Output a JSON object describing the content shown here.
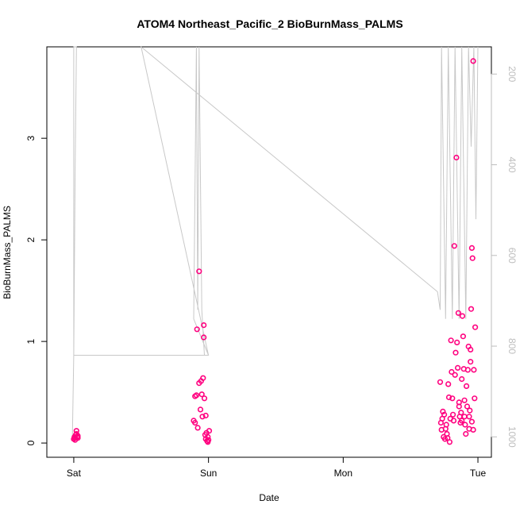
{
  "chart_data": {
    "type": "scatter",
    "title": "ATOM4 Northeast_Pacific_2 BioBurnMass_PALMS",
    "xlabel": "Date",
    "ylabel": "BioBurnMass_PALMS",
    "x_ticks": [
      "Sat",
      "Sun",
      "Mon",
      "Tue"
    ],
    "y_ticks": [
      "0",
      "1",
      "2",
      "3"
    ],
    "y_right_ticks": [
      "200",
      "400",
      "600",
      "800",
      "1000"
    ],
    "xlim_days": [
      -0.2,
      3.1
    ],
    "ylim": [
      -0.14,
      3.9
    ],
    "y_right_lim": [
      1045,
      140
    ],
    "grid": false,
    "marker_color": "#ff007f",
    "line_color": "#c8c8c8",
    "series": [
      {
        "kind": "points",
        "values": [
          [
            0.0,
            0.04
          ],
          [
            0.005,
            0.06
          ],
          [
            0.01,
            0.05
          ],
          [
            0.015,
            0.08
          ],
          [
            0.02,
            0.12
          ],
          [
            0.025,
            0.06
          ],
          [
            0.03,
            0.05
          ],
          [
            0.02,
            0.09
          ],
          [
            0.01,
            0.03
          ],
          [
            0.03,
            0.07
          ],
          [
            0.89,
            0.22
          ],
          [
            0.9,
            0.46
          ],
          [
            0.91,
            0.47
          ],
          [
            0.9,
            0.2
          ],
          [
            0.92,
            0.15
          ],
          [
            0.915,
            1.12
          ],
          [
            0.93,
            1.69
          ],
          [
            0.93,
            0.59
          ],
          [
            0.94,
            0.33
          ],
          [
            0.945,
            0.61
          ],
          [
            0.95,
            0.48
          ],
          [
            0.955,
            0.26
          ],
          [
            0.96,
            0.64
          ],
          [
            0.965,
            1.16
          ],
          [
            0.965,
            1.04
          ],
          [
            0.97,
            0.44
          ],
          [
            0.975,
            0.08
          ],
          [
            0.98,
            0.27
          ],
          [
            0.985,
            0.1
          ],
          [
            0.99,
            0.02
          ],
          [
            0.995,
            0.06
          ],
          [
            1.0,
            0.03
          ],
          [
            1.005,
            0.12
          ],
          [
            0.995,
            0.01
          ],
          [
            0.98,
            0.04
          ],
          [
            2.72,
            0.6
          ],
          [
            2.725,
            0.2
          ],
          [
            2.73,
            0.13
          ],
          [
            2.735,
            0.24
          ],
          [
            2.74,
            0.31
          ],
          [
            2.745,
            0.06
          ],
          [
            2.75,
            0.28
          ],
          [
            2.755,
            0.04
          ],
          [
            2.76,
            0.14
          ],
          [
            2.765,
            0.18
          ],
          [
            2.77,
            0.09
          ],
          [
            2.775,
            0.05
          ],
          [
            2.78,
            0.58
          ],
          [
            2.785,
            0.45
          ],
          [
            2.79,
            0.01
          ],
          [
            2.795,
            0.24
          ],
          [
            2.8,
            1.01
          ],
          [
            2.805,
            0.7
          ],
          [
            2.81,
            0.44
          ],
          [
            2.815,
            0.28
          ],
          [
            2.82,
            0.22
          ],
          [
            2.825,
            1.94
          ],
          [
            2.83,
            0.67
          ],
          [
            2.835,
            0.89
          ],
          [
            2.84,
            2.81
          ],
          [
            2.845,
            0.99
          ],
          [
            2.85,
            0.74
          ],
          [
            2.855,
            1.28
          ],
          [
            2.86,
            0.4
          ],
          [
            2.865,
            0.26
          ],
          [
            2.87,
            0.2
          ],
          [
            2.875,
            0.3
          ],
          [
            2.88,
            0.63
          ],
          [
            2.885,
            1.25
          ],
          [
            2.89,
            1.05
          ],
          [
            2.895,
            0.73
          ],
          [
            2.9,
            0.26
          ],
          [
            2.905,
            0.18
          ],
          [
            2.91,
            0.09
          ],
          [
            2.915,
            0.56
          ],
          [
            2.92,
            0.36
          ],
          [
            2.925,
            0.72
          ],
          [
            2.93,
            0.95
          ],
          [
            2.935,
            0.26
          ],
          [
            2.94,
            0.32
          ],
          [
            2.945,
            0.8
          ],
          [
            2.95,
            1.32
          ],
          [
            2.955,
            1.92
          ],
          [
            2.96,
            1.82
          ],
          [
            2.965,
            3.76
          ],
          [
            2.97,
            0.72
          ],
          [
            2.975,
            0.44
          ],
          [
            2.98,
            1.14
          ],
          [
            2.965,
            0.13
          ],
          [
            2.955,
            0.21
          ],
          [
            2.945,
            0.92
          ],
          [
            2.935,
            0.14
          ],
          [
            2.9,
            0.42
          ],
          [
            2.88,
            0.22
          ],
          [
            2.86,
            0.36
          ]
        ]
      },
      {
        "kind": "line",
        "axis": "right",
        "values": [
          [
            -0.01,
            1000
          ],
          [
            0.0,
            820
          ],
          [
            0.01,
            420
          ],
          [
            0.02,
            140
          ],
          [
            0.0,
            140
          ],
          [
            0.0,
            820
          ],
          [
            1.0,
            820
          ],
          [
            0.89,
            740
          ],
          [
            0.91,
            140
          ],
          [
            0.92,
            720
          ],
          [
            0.93,
            140
          ],
          [
            0.95,
            720
          ],
          [
            0.97,
            820
          ],
          [
            1.0,
            820
          ],
          [
            0.5,
            140
          ],
          [
            2.7,
            680
          ],
          [
            2.72,
            720
          ],
          [
            2.73,
            140
          ],
          [
            2.76,
            740
          ],
          [
            2.78,
            140
          ],
          [
            2.81,
            740
          ],
          [
            2.83,
            140
          ],
          [
            2.86,
            740
          ],
          [
            2.88,
            140
          ],
          [
            2.91,
            740
          ],
          [
            2.93,
            140
          ],
          [
            2.95,
            360
          ],
          [
            2.97,
            140
          ],
          [
            2.985,
            520
          ],
          [
            3.0,
            140
          ]
        ]
      }
    ]
  }
}
